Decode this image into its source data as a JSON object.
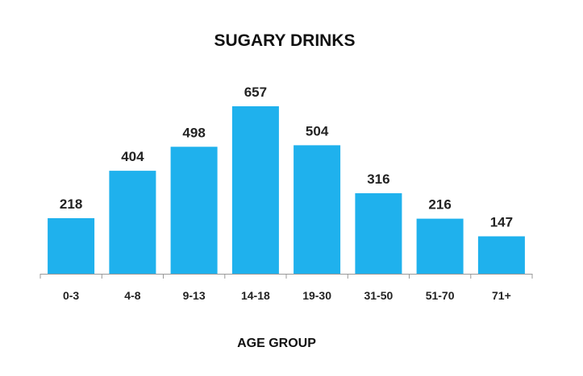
{
  "chart_data": {
    "type": "bar",
    "title": "SUGARY DRINKS",
    "xlabel": "AGE GROUP",
    "ylabel": "",
    "categories": [
      "0-3",
      "4-8",
      "9-13",
      "14-18",
      "19-30",
      "31-50",
      "51-70",
      "71+"
    ],
    "values": [
      218,
      404,
      498,
      657,
      504,
      316,
      216,
      147
    ],
    "data_labels": [
      "218",
      "404",
      "498",
      "657",
      "504",
      "316",
      "216",
      "147"
    ],
    "ylim": [
      0,
      700
    ],
    "grid": false,
    "legend": "none",
    "bar_color": "#1fb1ed",
    "axis_color": "#999999"
  }
}
